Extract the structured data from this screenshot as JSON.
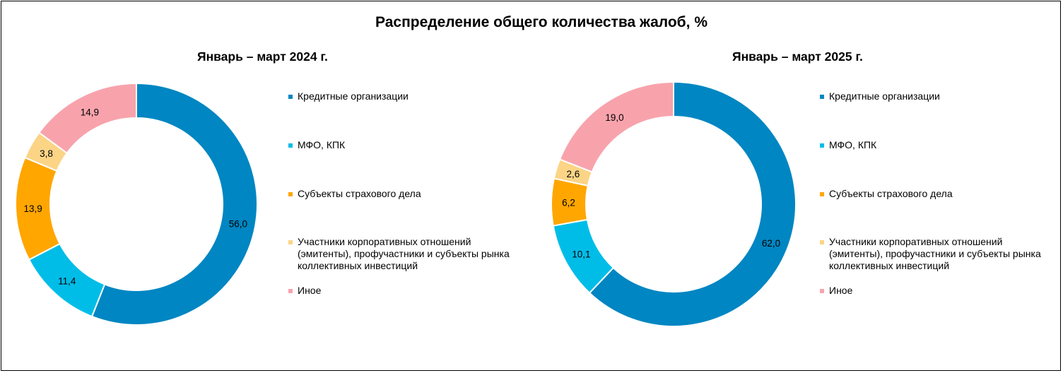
{
  "title": "Распределение общего количества жалоб, %",
  "legend_items": [
    {
      "label": "Кредитные организации",
      "color": "#0086C2"
    },
    {
      "label": "МФО, КПК",
      "color": "#00BDE8"
    },
    {
      "label": "Субъекты страхового дела",
      "color": "#FFA600"
    },
    {
      "label": "Участники корпоративных отношений\n(эмитенты), профучастники и субъекты рынка\nколлективных инвестиций",
      "color": "#FBD486"
    },
    {
      "label": "Иное",
      "color": "#F8A3AC"
    }
  ],
  "chart_data": [
    {
      "type": "pie",
      "subtype": "donut",
      "title": "Январь – март 2024 г.",
      "categories": [
        "Кредитные организации",
        "МФО, КПК",
        "Субъекты страхового дела",
        "Участники корпоративных отношений (эмитенты), профучастники и субъекты рынка коллективных инвестиций",
        "Иное"
      ],
      "values": [
        56.0,
        11.4,
        13.9,
        3.8,
        14.9
      ],
      "value_labels": [
        "56,0",
        "11,4",
        "13,9",
        "3,8",
        "14,9"
      ],
      "colors": [
        "#0086C2",
        "#00BDE8",
        "#FFA600",
        "#FBD486",
        "#F8A3AC"
      ],
      "start_angle_deg": 0,
      "direction": "clockwise",
      "legend_position": "right"
    },
    {
      "type": "pie",
      "subtype": "donut",
      "title": "Январь – март 2025 г.",
      "categories": [
        "Кредитные организации",
        "МФО, КПК",
        "Субъекты страхового дела",
        "Участники корпоративных отношений (эмитенты), профучастники и субъекты рынка коллективных инвестиций",
        "Иное"
      ],
      "values": [
        62.0,
        10.1,
        6.2,
        2.6,
        19.0
      ],
      "value_labels": [
        "62,0",
        "10,1",
        "6,2",
        "2,6",
        "19,0"
      ],
      "colors": [
        "#0086C2",
        "#00BDE8",
        "#FFA600",
        "#FBD486",
        "#F8A3AC"
      ],
      "start_angle_deg": 0,
      "direction": "clockwise",
      "legend_position": "right"
    }
  ]
}
